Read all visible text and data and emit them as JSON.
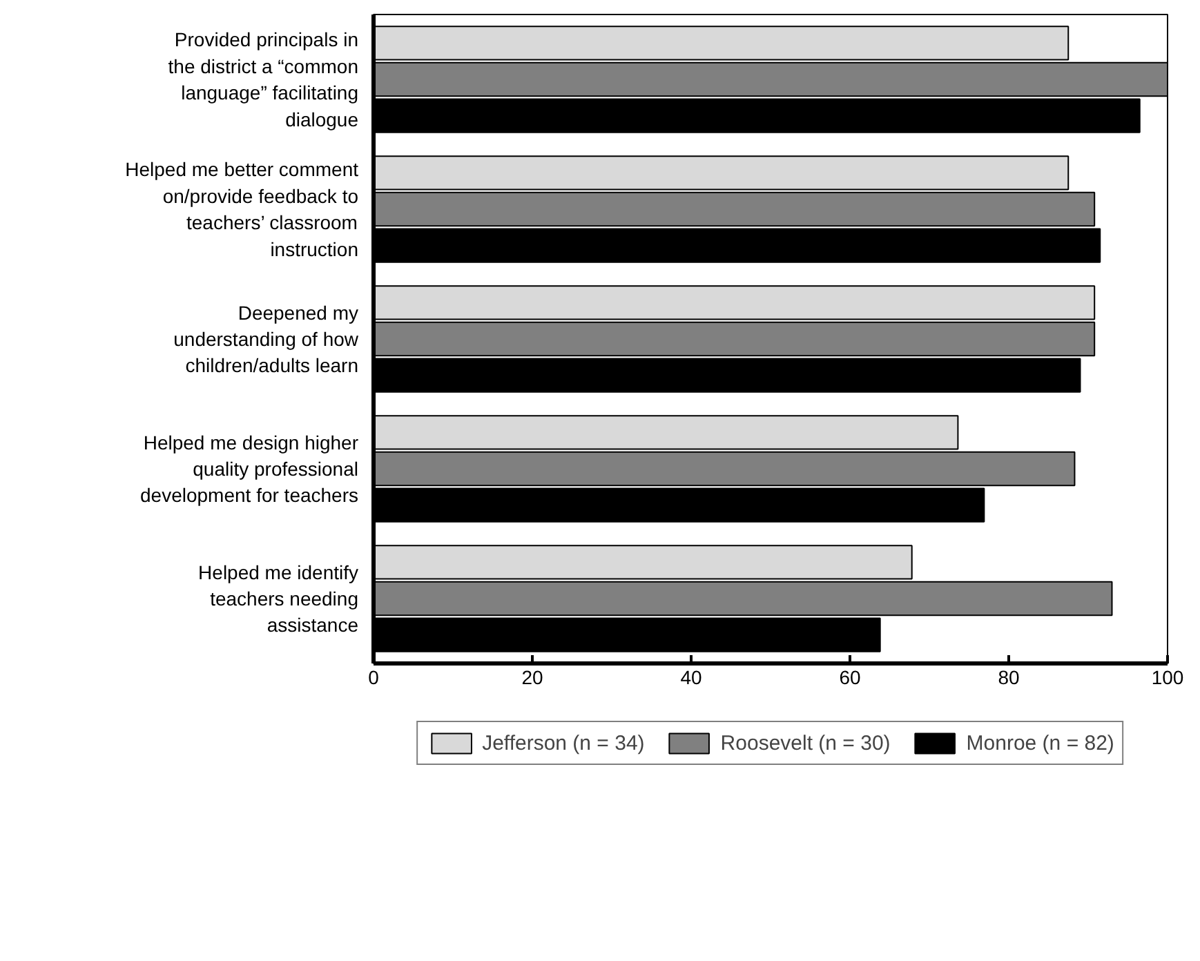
{
  "chart_data": {
    "type": "bar",
    "orientation": "horizontal",
    "categories": [
      "Provided principals in the district a “common language” facilitating dialogue",
      "Helped me better comment on/provide feedback to teachers’ classroom instruction",
      "Deepened my understanding of how children/adults learn",
      "Helped me design higher quality professional development for teachers",
      "Helped me identify teachers needing assistance"
    ],
    "series": [
      {
        "name": "Jefferson (n = 34)",
        "color": "#d9d9d9",
        "values": [
          87.5,
          87.5,
          90.8,
          73.6,
          67.8
        ]
      },
      {
        "name": "Roosevelt (n = 30)",
        "color": "#808080",
        "values": [
          100,
          90.8,
          90.8,
          88.3,
          93
        ]
      },
      {
        "name": "Monroe (n = 82)",
        "color": "#000000",
        "values": [
          96.5,
          91.5,
          89,
          76.9,
          63.8
        ]
      }
    ],
    "xlim": [
      0,
      100
    ],
    "xticks": [
      0,
      20,
      40,
      60,
      80,
      100
    ],
    "grid": false,
    "legend": "bottom"
  }
}
